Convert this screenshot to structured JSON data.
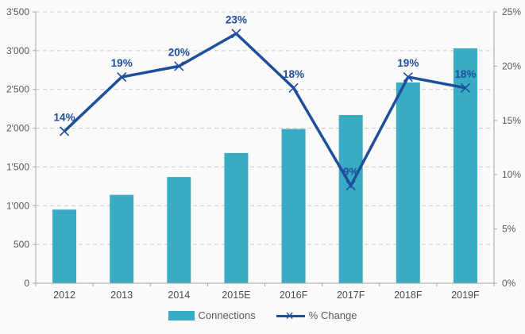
{
  "chart_data": {
    "type": "bar",
    "subtype": "combo-bar-line",
    "title": "",
    "categories": [
      "2012",
      "2013",
      "2014",
      "2015E",
      "2016F",
      "2017F",
      "2018F",
      "2019F"
    ],
    "series": [
      {
        "name": "Connections",
        "type": "bar",
        "axis": "left",
        "color": "#39ACC3",
        "values": [
          950,
          1140,
          1370,
          1680,
          1990,
          2170,
          2590,
          3030
        ]
      },
      {
        "name": "% Change",
        "type": "line",
        "axis": "right",
        "color": "#1F4E9C",
        "marker": "x",
        "values": [
          14,
          19,
          20,
          23,
          18,
          9,
          19,
          18
        ],
        "point_labels": [
          "14%",
          "19%",
          "20%",
          "23%",
          "18%",
          "9%",
          "19%",
          "18%"
        ]
      }
    ],
    "left_axis": {
      "min": 0,
      "max": 3500,
      "step": 500,
      "tick_labels": [
        "0",
        "500",
        "1'000",
        "1'500",
        "2'000",
        "2'500",
        "3'000",
        "3'500"
      ]
    },
    "right_axis": {
      "min": 0,
      "max": 25,
      "step": 5,
      "tick_labels": [
        "0%",
        "5%",
        "10%",
        "15%",
        "20%",
        "25%"
      ]
    },
    "grid": "horizontal-dashed",
    "legend": {
      "position": "bottom",
      "items": [
        {
          "label": "Connections",
          "swatch": "bar"
        },
        {
          "label": "% Change",
          "swatch": "line-x"
        }
      ]
    }
  },
  "colors": {
    "bar": "#39ACC3",
    "line": "#1F4E9C",
    "data_label": "#1F4E9C",
    "grid": "#C9C9C9",
    "axis": "#A6A6A6",
    "axis_text": "#595959",
    "category_text": "#4A4A4A",
    "background": "#FAFAFA"
  }
}
